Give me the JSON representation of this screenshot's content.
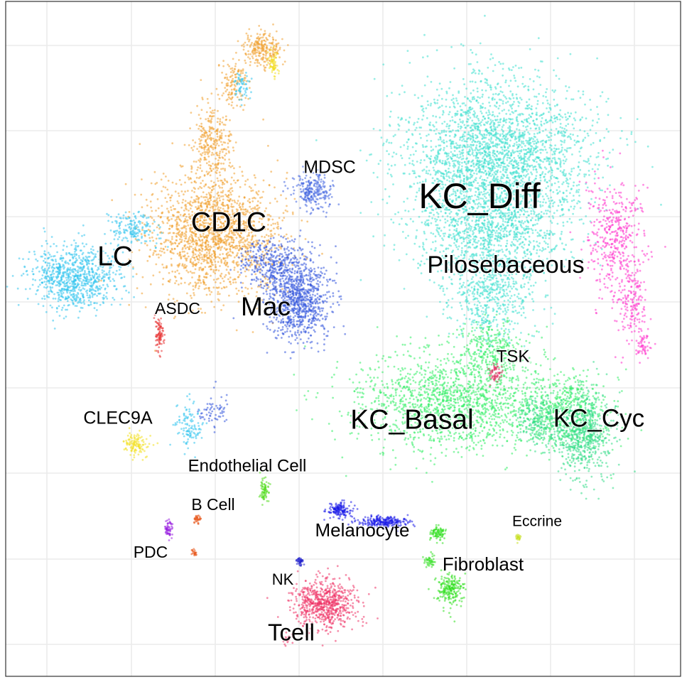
{
  "chart_data": {
    "type": "scatter",
    "title": "",
    "xlabel": "",
    "ylabel": "",
    "grid": true,
    "legend": "none",
    "axis_ticks_visible": false,
    "clusters": [
      {
        "label": "KC_Diff",
        "color": "#40E0D0",
        "count": 4200
      },
      {
        "label": "Pilosebaceous",
        "color": "#FF33CC",
        "count": 650
      },
      {
        "label": "KC_Basal",
        "color": "#33EE66",
        "count": 2400
      },
      {
        "label": "KC_Cyc",
        "color": "#33DD88",
        "count": 900
      },
      {
        "label": "TSK",
        "color": "#E8336A",
        "count": 60
      },
      {
        "label": "CD1C",
        "color": "#F0A030",
        "count": 2400
      },
      {
        "label": "LC",
        "color": "#33C4EE",
        "count": 1200
      },
      {
        "label": "Mac",
        "color": "#3355DD",
        "count": 1300
      },
      {
        "label": "MDSC",
        "color": "#4466E0",
        "count": 250
      },
      {
        "label": "ASDC",
        "color": "#E83333",
        "count": 90
      },
      {
        "label": "CLEC9A",
        "color": "#F2E020",
        "count": 180
      },
      {
        "label": "Endothelial Cell",
        "color": "#55DD22",
        "count": 80
      },
      {
        "label": "B Cell",
        "color": "#E8551A",
        "count": 50
      },
      {
        "label": "PDC",
        "color": "#9922E0",
        "count": 60
      },
      {
        "label": "Melanocyte",
        "color": "#1A1AE8",
        "count": 400
      },
      {
        "label": "Fibroblast",
        "color": "#33E022",
        "count": 350
      },
      {
        "label": "Eccrine",
        "color": "#C8E022",
        "count": 25
      },
      {
        "label": "NK",
        "color": "#2222CC",
        "count": 40
      },
      {
        "label": "Tcell",
        "color": "#EE3366",
        "count": 700
      }
    ]
  }
}
